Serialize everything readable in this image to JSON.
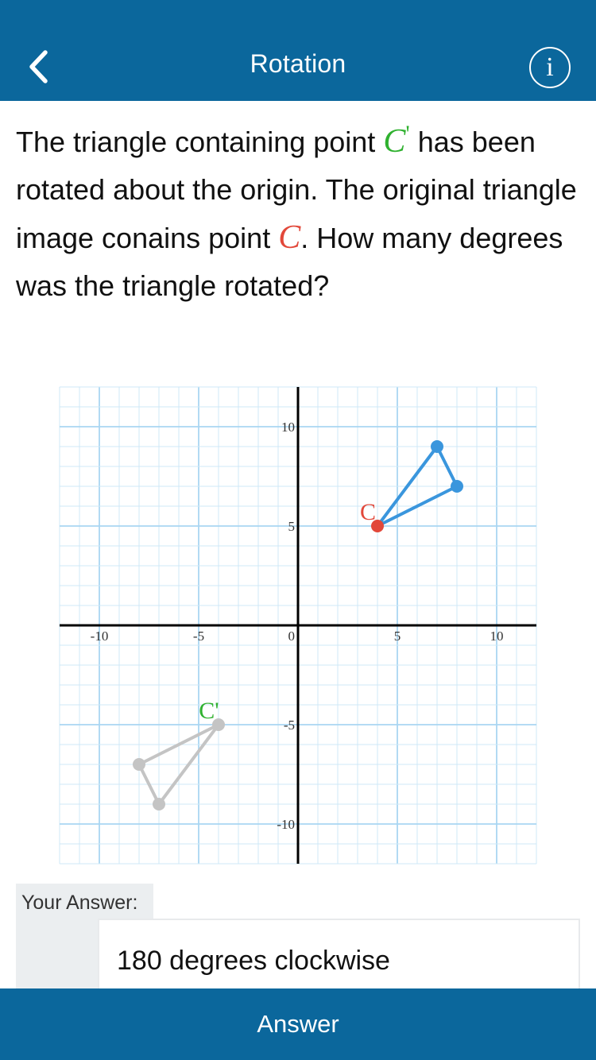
{
  "header": {
    "title": "Rotation",
    "back_icon": "chevron-left-icon",
    "info_icon": "info-icon",
    "info_glyph": "i"
  },
  "question": {
    "text_1": "The triangle containing point ",
    "point_prime_letter": "C",
    "point_prime_mark": "'",
    "text_2": " has been rotated about the origin. The original triangle image conains point ",
    "point_letter": "C",
    "text_3": ". How many degrees was the triangle rotated?"
  },
  "chart_data": {
    "type": "scatter",
    "xlim": [
      -12,
      12
    ],
    "ylim": [
      -12,
      12
    ],
    "grid": true,
    "x_tick_labels": [
      "-10",
      "-5",
      "0",
      "5",
      "10"
    ],
    "y_tick_labels": [
      "10",
      "5",
      "-5",
      "-10"
    ],
    "series": [
      {
        "label": "C",
        "color": "#3a96dd",
        "point_color": "#e2483a",
        "points": [
          [
            4,
            5
          ],
          [
            7,
            9
          ],
          [
            8,
            7
          ]
        ]
      },
      {
        "label": "C'",
        "color": "#c4c4c4",
        "point_color": "#c4c4c4",
        "points": [
          [
            -4,
            -5
          ],
          [
            -7,
            -9
          ],
          [
            -8,
            -7
          ]
        ]
      }
    ],
    "label_colors": {
      "C": "#e2483a",
      "C'": "#2fb12f"
    }
  },
  "answer": {
    "label": "Your Answer:",
    "value": "180 degrees clockwise"
  },
  "footer": {
    "button_label": "Answer"
  },
  "colors": {
    "header_bg": "#0b679c",
    "grid_minor": "#cfe8f7",
    "grid_major": "#a9d6f2"
  }
}
